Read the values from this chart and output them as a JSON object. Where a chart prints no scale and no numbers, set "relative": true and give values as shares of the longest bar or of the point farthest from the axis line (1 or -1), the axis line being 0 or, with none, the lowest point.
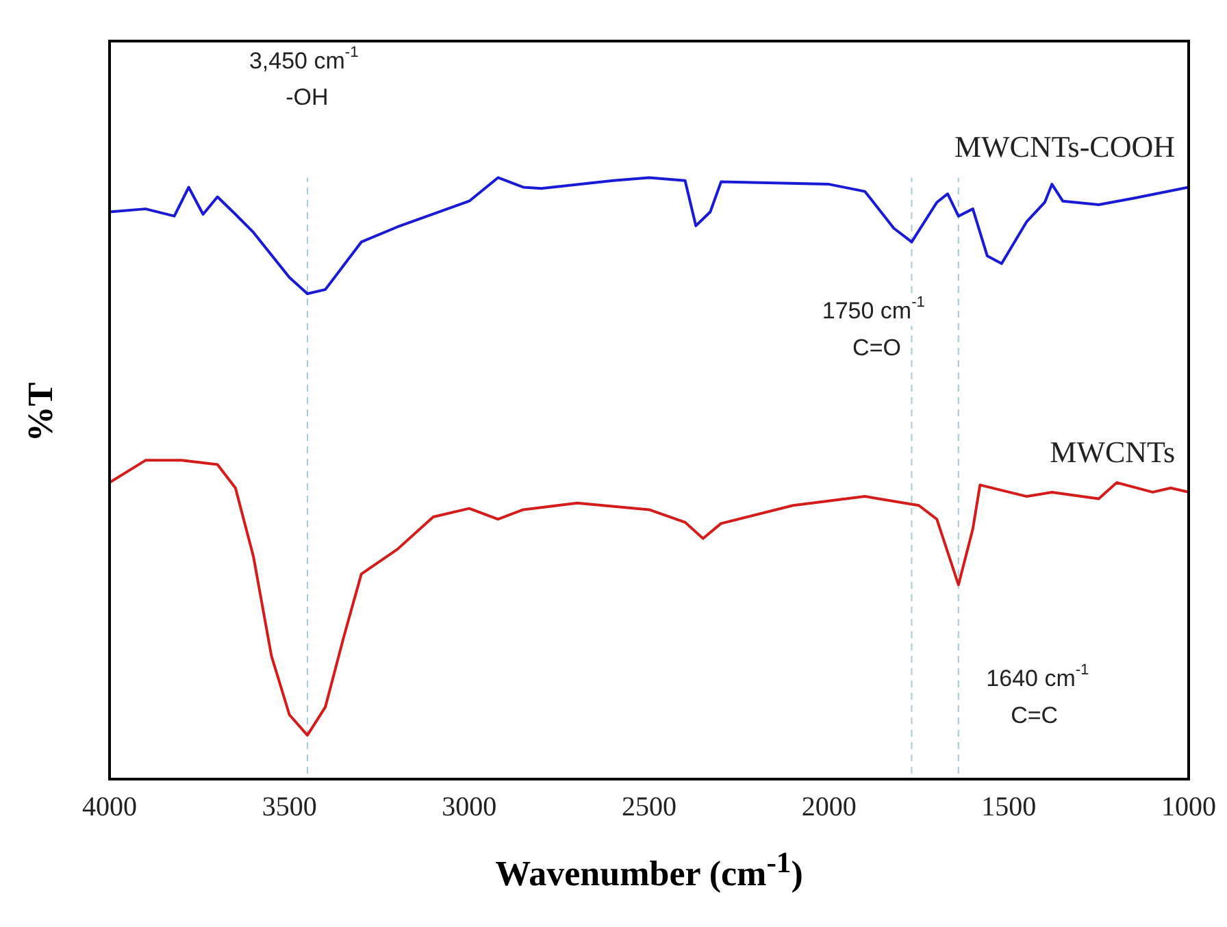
{
  "chart_data": {
    "type": "line",
    "xlabel": "Wavenumber (cm$^{-1}$)",
    "ylabel": "%T",
    "relative": true,
    "xlim": [
      4000,
      1000
    ],
    "xticks": [
      4000,
      3500,
      3000,
      2500,
      2000,
      1500,
      1000
    ],
    "legend": false,
    "grid": false,
    "marker": "none",
    "line_style": "solid",
    "series": [
      {
        "name": "MWCNTs-COOH",
        "color": "#1a1ad6",
        "x": [
          4000,
          3900,
          3820,
          3780,
          3740,
          3700,
          3650,
          3600,
          3500,
          3450,
          3400,
          3300,
          3200,
          3000,
          2920,
          2850,
          2800,
          2600,
          2500,
          2400,
          2370,
          2330,
          2300,
          2000,
          1900,
          1820,
          1770,
          1700,
          1670,
          1640,
          1600,
          1560,
          1520,
          1450,
          1400,
          1380,
          1350,
          1250,
          1150,
          1000
        ],
        "values": [
          0.943,
          0.948,
          0.936,
          0.984,
          0.939,
          0.968,
          0.939,
          0.909,
          0.834,
          0.807,
          0.814,
          0.893,
          0.918,
          0.961,
          1,
          0.984,
          0.982,
          0.995,
          1,
          0.995,
          0.92,
          0.943,
          0.993,
          0.989,
          0.977,
          0.916,
          0.893,
          0.959,
          0.973,
          0.936,
          0.948,
          0.87,
          0.857,
          0.927,
          0.959,
          0.989,
          0.961,
          0.955,
          0.966,
          0.984
        ]
      },
      {
        "name": "MWCNTs",
        "color": "#d41c1c",
        "x": [
          4000,
          3900,
          3800,
          3700,
          3650,
          3600,
          3550,
          3500,
          3450,
          3400,
          3350,
          3300,
          3200,
          3100,
          3000,
          2920,
          2850,
          2700,
          2500,
          2400,
          2350,
          2300,
          2100,
          1900,
          1750,
          1700,
          1640,
          1600,
          1580,
          1450,
          1380,
          1250,
          1200,
          1100,
          1050,
          1000
        ],
        "values": [
          0.493,
          0.53,
          0.53,
          0.523,
          0.484,
          0.37,
          0.205,
          0.107,
          0.073,
          0.12,
          0.234,
          0.341,
          0.382,
          0.436,
          0.45,
          0.432,
          0.448,
          0.459,
          0.448,
          0.427,
          0.4,
          0.425,
          0.455,
          0.47,
          0.455,
          0.432,
          0.323,
          0.416,
          0.489,
          0.47,
          0.477,
          0.466,
          0.493,
          0.477,
          0.484,
          0.477
        ]
      }
    ],
    "ref_lines": [
      {
        "axis": "x",
        "value": 3450,
        "color": "#a9c9d6",
        "line_style": "dashed"
      },
      {
        "axis": "x",
        "value": 1770,
        "color": "#a9c9d6",
        "line_style": "dashed"
      },
      {
        "axis": "x",
        "value": 1640,
        "color": "#a9c9d6",
        "line_style": "dashed"
      }
    ],
    "annotations": [
      "3,450 cm$^{-1}$",
      "-OH",
      "1750 cm$^{-1}$",
      "C=O",
      "1640 cm$^{-1}$",
      "C=C"
    ]
  }
}
